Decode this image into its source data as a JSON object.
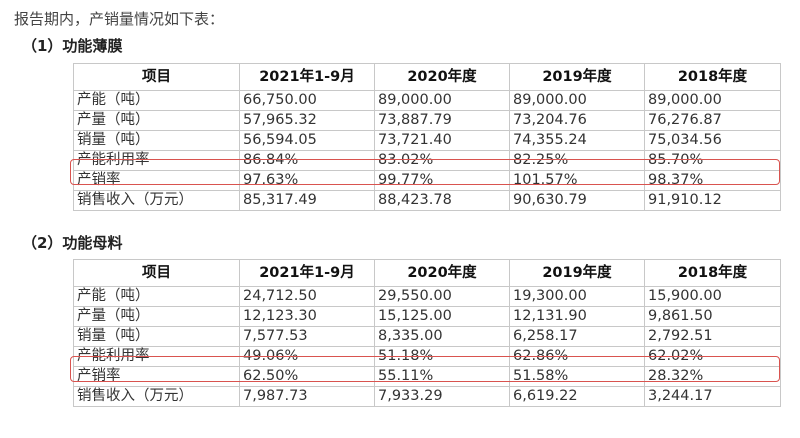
{
  "intro": "报告期内，产销量情况如下表：",
  "sections": [
    {
      "title": "（1）功能薄膜",
      "headers": [
        "项目",
        "2021年1-9月",
        "2020年度",
        "2019年度",
        "2018年度"
      ],
      "rows": [
        [
          "产能（吨）",
          "66,750.00",
          "89,000.00",
          "89,000.00",
          "89,000.00"
        ],
        [
          "产量（吨）",
          "57,965.32",
          "73,887.79",
          "73,204.76",
          "76,276.87"
        ],
        [
          "销量（吨）",
          "56,594.05",
          "73,721.40",
          "74,355.24",
          "75,034.56"
        ],
        [
          "产能利用率",
          "86.84%",
          "83.02%",
          "82.25%",
          "85.70%"
        ],
        [
          "产销率",
          "97.63%",
          "99.77%",
          "101.57%",
          "98.37%"
        ],
        [
          "销售收入（万元）",
          "85,317.49",
          "88,423.78",
          "90,630.79",
          "91,910.12"
        ]
      ],
      "highlighted_row": "产能利用率"
    },
    {
      "title": "（2）功能母料",
      "headers": [
        "项目",
        "2021年1-9月",
        "2020年度",
        "2019年度",
        "2018年度"
      ],
      "rows": [
        [
          "产能（吨）",
          "24,712.50",
          "29,550.00",
          "19,300.00",
          "15,900.00"
        ],
        [
          "产量（吨）",
          "12,123.30",
          "15,125.00",
          "12,131.90",
          "9,861.50"
        ],
        [
          "销量（吨）",
          "7,577.53",
          "8,335.00",
          "6,258.17",
          "2,792.51"
        ],
        [
          "产能利用率",
          "49.06%",
          "51.18%",
          "62.86%",
          "62.02%"
        ],
        [
          "产销率",
          "62.50%",
          "55.11%",
          "51.58%",
          "28.32%"
        ],
        [
          "销售收入（万元）",
          "7,987.73",
          "7,933.29",
          "6,619.22",
          "3,244.17"
        ]
      ],
      "highlighted_row": "产能利用率"
    }
  ],
  "colors": {
    "highlight_border": "#d9534f",
    "table_border": "#c8c8c8",
    "text": "#333333"
  }
}
